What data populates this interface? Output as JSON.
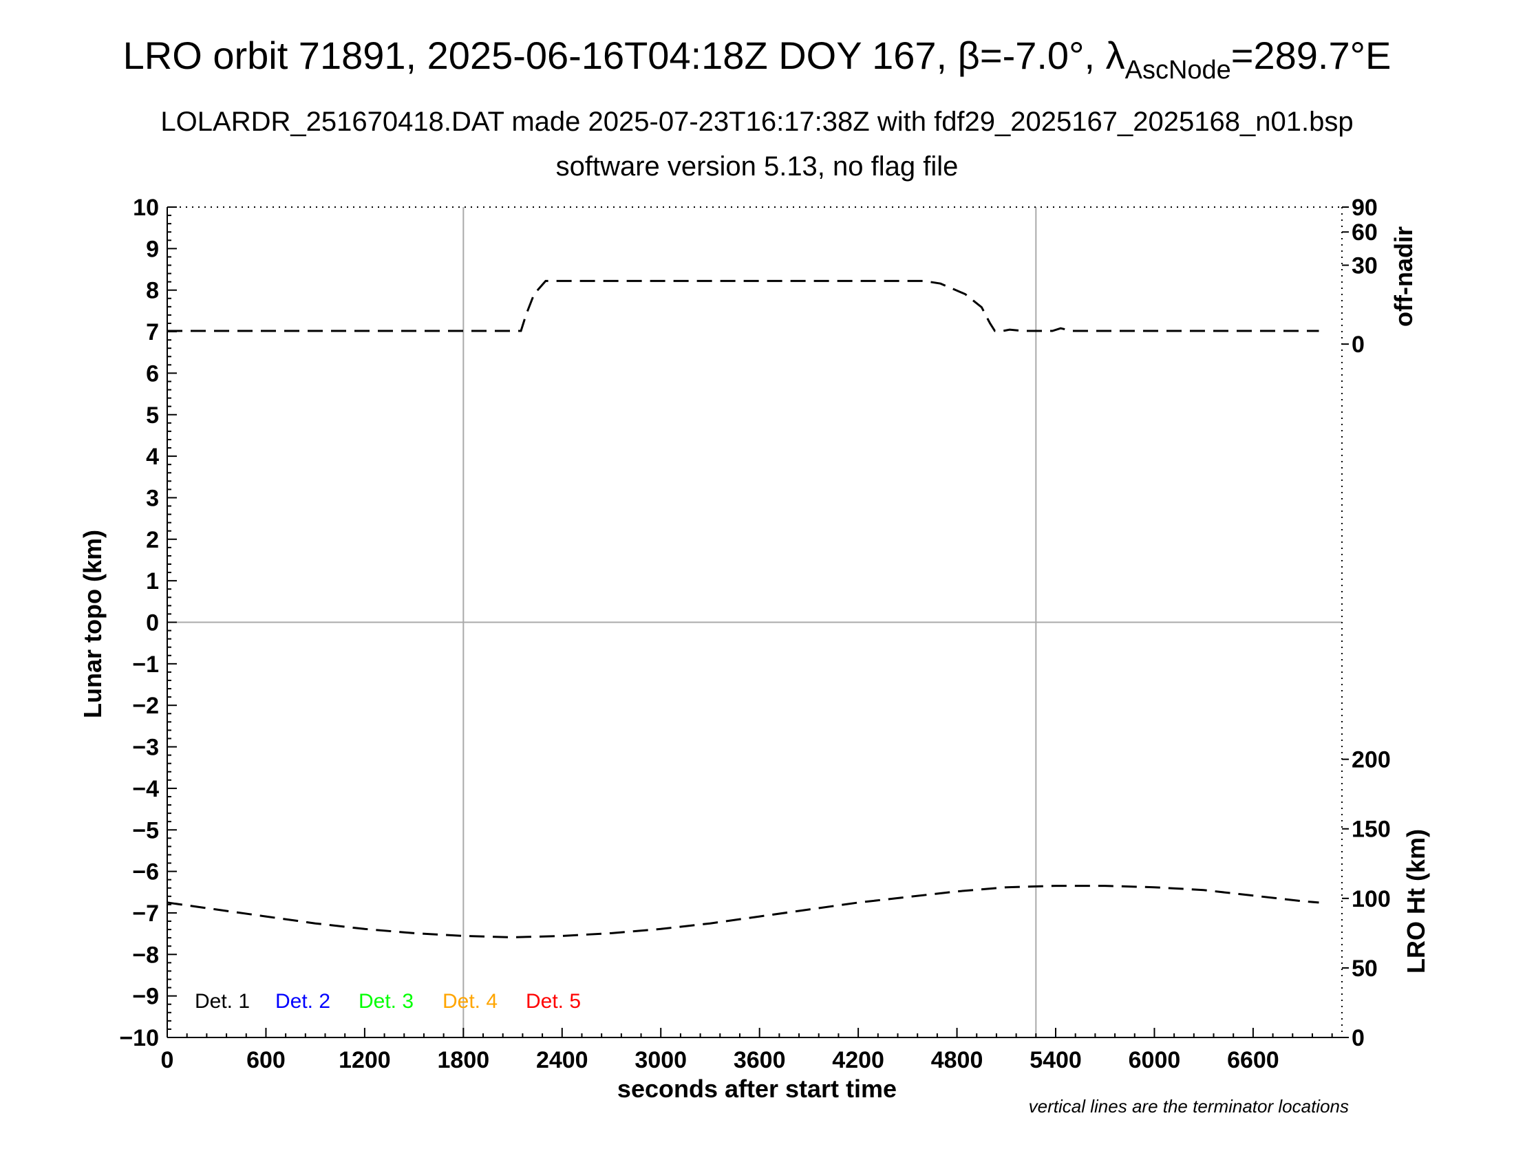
{
  "chart_data": {
    "type": "line",
    "title": "LRO orbit 71891, 2025-06-16T04:18Z DOY 167, β=-7.0°, λ",
    "title_subscript": "AscNode",
    "title_suffix": "=289.7°E",
    "subtitle": "LOLARDR_251670418.DAT made 2025-07-23T16:17:38Z with fdf29_2025167_2025168_n01.bsp",
    "subtitle2": "software version 5.13, no flag file",
    "xlabel": "seconds after start time",
    "ylabel_left": "Lunar topo (km)",
    "ylabel_right_top": "off-nadir",
    "ylabel_right_bottom": "LRO Ht (km)",
    "footnote": "vertical lines are the terminator locations",
    "xlim": [
      0,
      7140
    ],
    "xticks": [
      "0",
      "600",
      "1200",
      "1800",
      "2400",
      "3000",
      "3600",
      "4200",
      "4800",
      "5400",
      "6000",
      "6600"
    ],
    "ylim": [
      -10,
      10
    ],
    "yticks": [
      "10",
      "9",
      "8",
      "7",
      "6",
      "5",
      "4",
      "3",
      "2",
      "1",
      "0",
      "−1",
      "−2",
      "−3",
      "−4",
      "−5",
      "−6",
      "−7",
      "−8",
      "−9",
      "−10"
    ],
    "right_top_ticks": [
      "90",
      "60",
      "30",
      "0"
    ],
    "right_bottom_ticks": [
      "200",
      "150",
      "100",
      "50",
      "0"
    ],
    "terminator_lines_x": [
      1800,
      5280
    ],
    "grid": "terminator verticals and zero line",
    "legend": {
      "placement": "bottom-left",
      "entries": [
        {
          "label": "Det. 1",
          "color": "#000000"
        },
        {
          "label": "Det. 2",
          "color": "#0000ff"
        },
        {
          "label": "Det. 3",
          "color": "#00ff00"
        },
        {
          "label": "Det. 4",
          "color": "#ffa500"
        },
        {
          "label": "Det. 5",
          "color": "#ff0000"
        }
      ]
    },
    "series": [
      {
        "axis": "off-nadir (deg)",
        "style": "dashed",
        "color": "#000000",
        "x": [
          0,
          1000,
          2000,
          2150,
          2180,
          2230,
          2300,
          2600,
          3000,
          4000,
          4600,
          4700,
          4850,
          4950,
          5000,
          5030,
          5080,
          5120,
          5200,
          5380,
          5430,
          5500,
          5700,
          6000,
          6500,
          7000
        ],
        "values": [
          5,
          5,
          5,
          5,
          11,
          19,
          24,
          24,
          24,
          24,
          24,
          23,
          19,
          14,
          8,
          5,
          5,
          5.5,
          5,
          5,
          6,
          5,
          5,
          5,
          5,
          5
        ]
      },
      {
        "axis": "LRO Ht (km)",
        "style": "dashed",
        "color": "#000000",
        "x": [
          0,
          300,
          600,
          900,
          1200,
          1500,
          1800,
          2100,
          2400,
          2700,
          3000,
          3300,
          3600,
          3900,
          4200,
          4500,
          4800,
          5100,
          5400,
          5700,
          6000,
          6300,
          6600,
          6900,
          7000
        ],
        "values": [
          97,
          92,
          87,
          82,
          78,
          75,
          73,
          72,
          73,
          75,
          78,
          82,
          87,
          92,
          97,
          101,
          105,
          108,
          109,
          109,
          108,
          106,
          102,
          98,
          97
        ]
      }
    ]
  }
}
